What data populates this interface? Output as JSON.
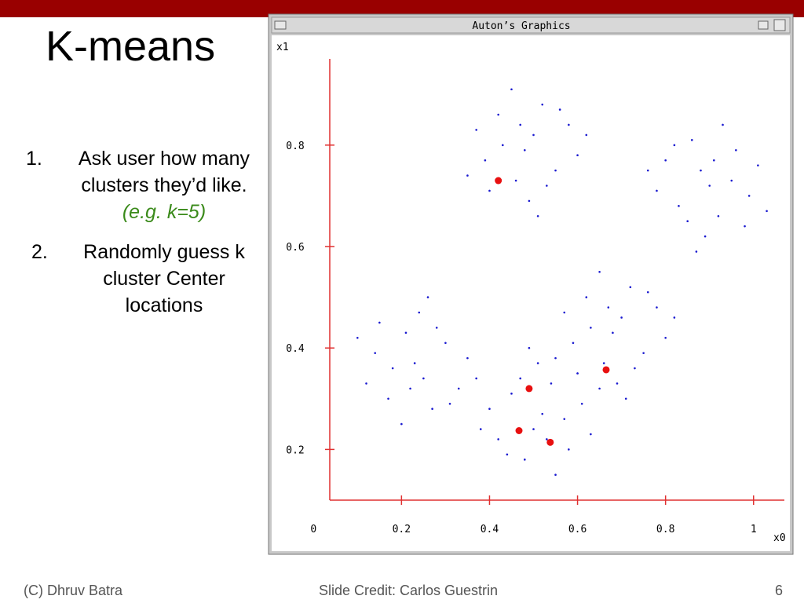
{
  "slide": {
    "title": "K-means",
    "items": [
      {
        "number": "1.",
        "lines": [
          "Ask user how many",
          "clusters they’d like."
        ],
        "note": "(e.g. k=5)"
      },
      {
        "number": "2.",
        "lines": [
          "Randomly guess k",
          "cluster Center",
          "locations"
        ]
      }
    ],
    "footer_left": "(C) Dhruv Batra",
    "footer_center": "Slide Credit: Carlos Guestrin",
    "page_number": "6"
  },
  "window": {
    "title": "Auton’s Graphics"
  },
  "chart_data": {
    "type": "scatter",
    "x_label": "x0",
    "y_label": "x1",
    "xlim": [
      0.037,
      1.07
    ],
    "ylim": [
      0.1,
      0.97
    ],
    "xticks": [
      0,
      0.2,
      0.4,
      0.6,
      0.8,
      1
    ],
    "yticks": [
      0.2,
      0.4,
      0.6,
      0.8
    ],
    "axis_color": "#e03030",
    "series": [
      {
        "color": "#1a1ad0",
        "x": [
          0.5,
          0.43,
          0.55,
          0.46,
          0.58,
          0.39,
          0.52,
          0.42,
          0.49,
          0.6,
          0.37,
          0.53,
          0.45,
          0.56,
          0.4,
          0.48,
          0.62,
          0.35,
          0.51,
          0.47,
          0.88,
          0.95,
          0.83,
          0.92,
          0.8,
          0.99,
          0.86,
          0.96,
          0.89,
          0.78,
          1.01,
          0.85,
          0.93,
          0.82,
          0.98,
          0.9,
          0.76,
          1.03,
          0.87,
          0.91,
          0.25,
          0.18,
          0.3,
          0.21,
          0.33,
          0.14,
          0.27,
          0.17,
          0.24,
          0.35,
          0.12,
          0.28,
          0.2,
          0.31,
          0.15,
          0.23,
          0.37,
          0.1,
          0.26,
          0.22,
          0.7,
          0.63,
          0.75,
          0.66,
          0.78,
          0.59,
          0.72,
          0.62,
          0.69,
          0.8,
          0.57,
          0.73,
          0.65,
          0.76,
          0.6,
          0.68,
          0.82,
          0.55,
          0.71,
          0.67,
          0.5,
          0.57,
          0.45,
          0.54,
          0.42,
          0.61,
          0.48,
          0.58,
          0.51,
          0.4,
          0.63,
          0.47,
          0.55,
          0.44,
          0.6,
          0.52,
          0.38,
          0.65,
          0.49,
          0.53
        ],
        "values": [
          0.82,
          0.8,
          0.75,
          0.73,
          0.84,
          0.77,
          0.88,
          0.86,
          0.69,
          0.78,
          0.83,
          0.72,
          0.91,
          0.87,
          0.71,
          0.79,
          0.82,
          0.74,
          0.66,
          0.84,
          0.75,
          0.73,
          0.68,
          0.66,
          0.77,
          0.7,
          0.81,
          0.79,
          0.62,
          0.71,
          0.76,
          0.65,
          0.84,
          0.8,
          0.64,
          0.72,
          0.75,
          0.67,
          0.59,
          0.77,
          0.34,
          0.36,
          0.41,
          0.43,
          0.32,
          0.39,
          0.28,
          0.3,
          0.47,
          0.38,
          0.33,
          0.44,
          0.25,
          0.29,
          0.45,
          0.37,
          0.34,
          0.42,
          0.5,
          0.32,
          0.46,
          0.44,
          0.39,
          0.37,
          0.48,
          0.41,
          0.52,
          0.5,
          0.33,
          0.42,
          0.47,
          0.36,
          0.55,
          0.51,
          0.35,
          0.43,
          0.46,
          0.38,
          0.3,
          0.48,
          0.24,
          0.26,
          0.31,
          0.33,
          0.22,
          0.29,
          0.18,
          0.2,
          0.37,
          0.28,
          0.23,
          0.34,
          0.15,
          0.19,
          0.35,
          0.27,
          0.24,
          0.32,
          0.4,
          0.22
        ]
      },
      {
        "color": "#e81010",
        "x": [
          0.42,
          0.665,
          0.49,
          0.467,
          0.538
        ],
        "values": [
          0.73,
          0.357,
          0.32,
          0.237,
          0.214
        ]
      }
    ]
  }
}
